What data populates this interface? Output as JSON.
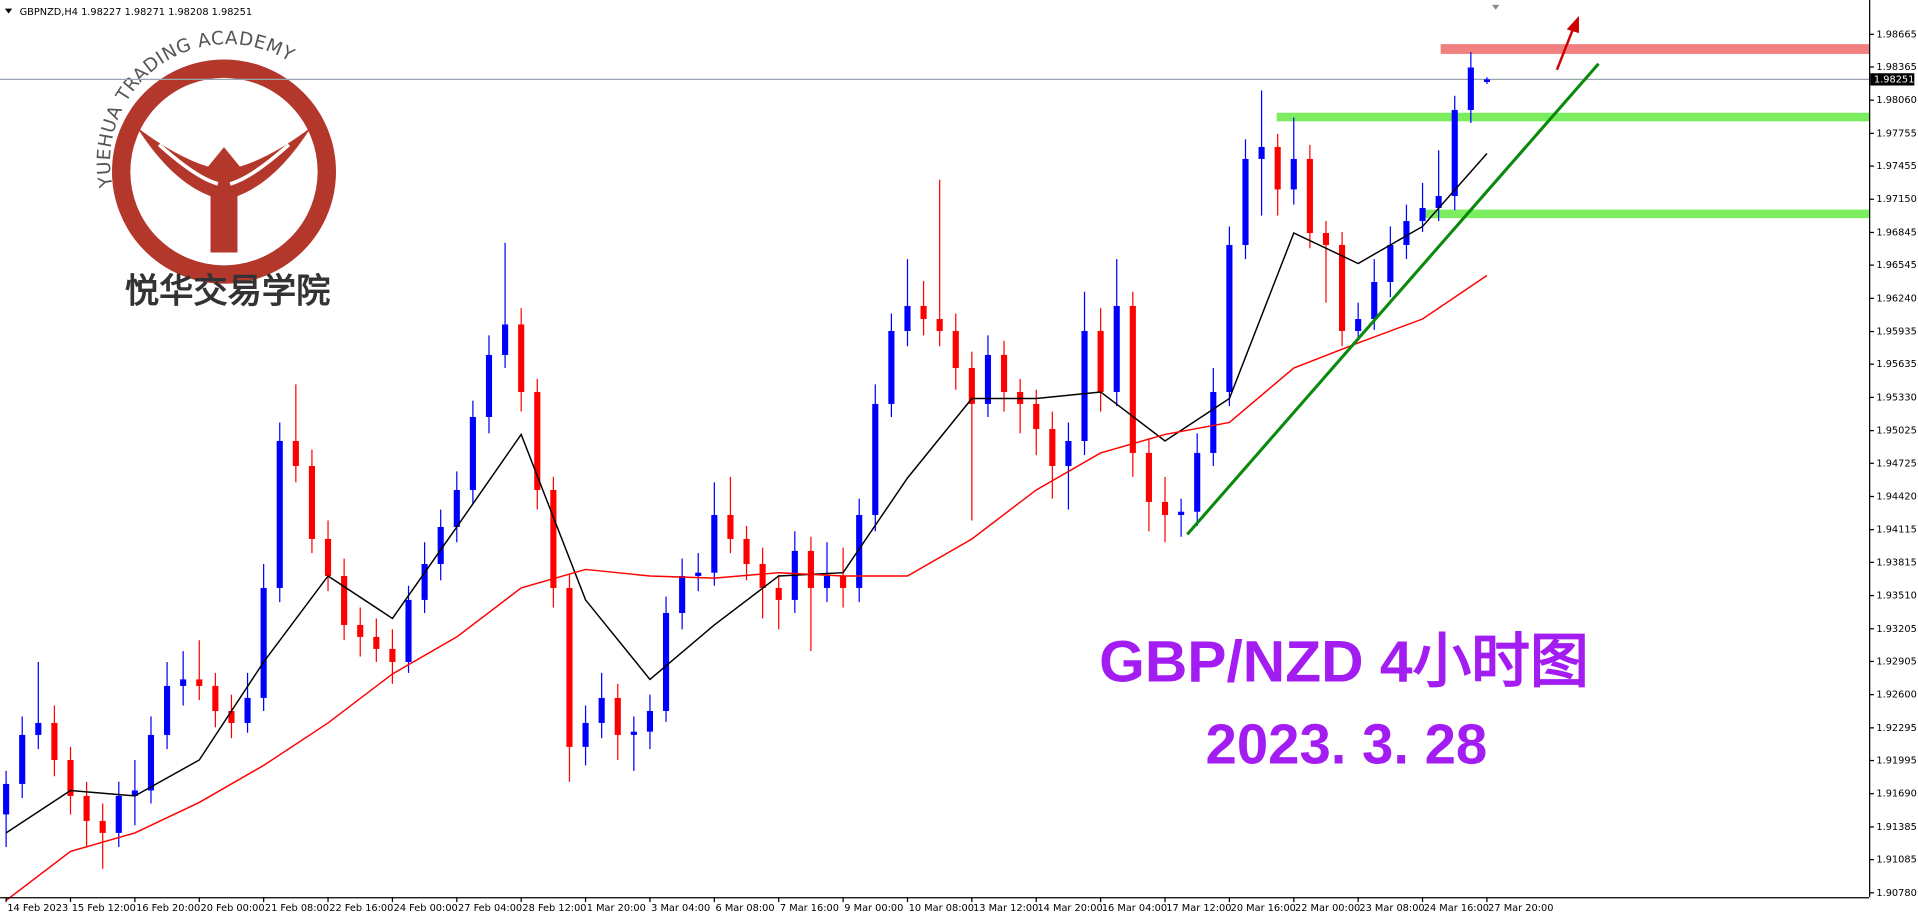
{
  "header": "GBPNZD,H4  1.98227 1.98271 1.98208 1.98251",
  "watermark": {
    "arc_text": "YUEHUA TRADING ACADEMY",
    "name": "悦华交易学院"
  },
  "chart_data": {
    "type": "candlestick",
    "title": "GBP/NZD 4小时图",
    "subtitle": "2023. 3. 28",
    "bull_color": "#0000ff",
    "bear_color": "#ff0000",
    "candles": [
      [
        1.915,
        1.919,
        1.912,
        1.9178
      ],
      [
        1.9178,
        1.924,
        1.9165,
        1.9223
      ],
      [
        1.9223,
        1.929,
        1.921,
        1.9234
      ],
      [
        1.9234,
        1.925,
        1.9185,
        1.92
      ],
      [
        1.92,
        1.9212,
        1.915,
        1.9167
      ],
      [
        1.9167,
        1.918,
        1.912,
        1.9144
      ],
      [
        1.9144,
        1.916,
        1.91,
        1.9133
      ],
      [
        1.9133,
        1.918,
        1.912,
        1.9167
      ],
      [
        1.9167,
        1.92,
        1.914,
        1.9172
      ],
      [
        1.9172,
        1.924,
        1.916,
        1.9223
      ],
      [
        1.9223,
        1.929,
        1.921,
        1.9268
      ],
      [
        1.9268,
        1.93,
        1.925,
        1.9274
      ],
      [
        1.9274,
        1.931,
        1.9255,
        1.9268
      ],
      [
        1.9268,
        1.928,
        1.923,
        1.9245
      ],
      [
        1.9245,
        1.926,
        1.922,
        1.9234
      ],
      [
        1.9234,
        1.928,
        1.9225,
        1.9257
      ],
      [
        1.9257,
        1.938,
        1.9245,
        1.9358
      ],
      [
        1.9358,
        1.951,
        1.9345,
        1.9493
      ],
      [
        1.9493,
        1.9545,
        1.9455,
        1.947
      ],
      [
        1.947,
        1.9485,
        1.939,
        1.9403
      ],
      [
        1.9403,
        1.942,
        1.9355,
        1.9369
      ],
      [
        1.9369,
        1.9385,
        1.931,
        1.9324
      ],
      [
        1.9324,
        1.934,
        1.9295,
        1.9313
      ],
      [
        1.9313,
        1.933,
        1.929,
        1.9302
      ],
      [
        1.9302,
        1.932,
        1.927,
        1.929
      ],
      [
        1.929,
        1.936,
        1.928,
        1.9347
      ],
      [
        1.9347,
        1.94,
        1.9335,
        1.938
      ],
      [
        1.938,
        1.943,
        1.9365,
        1.9414
      ],
      [
        1.9414,
        1.9465,
        1.94,
        1.9448
      ],
      [
        1.9448,
        1.953,
        1.9435,
        1.9515
      ],
      [
        1.9515,
        1.959,
        1.95,
        1.9572
      ],
      [
        1.9572,
        1.9675,
        1.956,
        1.96
      ],
      [
        1.96,
        1.9615,
        1.952,
        1.9538
      ],
      [
        1.9538,
        1.955,
        1.943,
        1.9448
      ],
      [
        1.9448,
        1.946,
        1.934,
        1.9358
      ],
      [
        1.9358,
        1.937,
        1.918,
        1.9212
      ],
      [
        1.9212,
        1.925,
        1.9195,
        1.9234
      ],
      [
        1.9234,
        1.928,
        1.922,
        1.9257
      ],
      [
        1.9257,
        1.927,
        1.92,
        1.9223
      ],
      [
        1.9223,
        1.924,
        1.919,
        1.9226
      ],
      [
        1.9226,
        1.926,
        1.921,
        1.9245
      ],
      [
        1.9245,
        1.935,
        1.9235,
        1.9335
      ],
      [
        1.9335,
        1.9385,
        1.932,
        1.9369
      ],
      [
        1.9369,
        1.939,
        1.9355,
        1.9372
      ],
      [
        1.9372,
        1.9455,
        1.936,
        1.9425
      ],
      [
        1.9425,
        1.946,
        1.939,
        1.9403
      ],
      [
        1.9403,
        1.9415,
        1.9365,
        1.938
      ],
      [
        1.938,
        1.9395,
        1.933,
        1.9358
      ],
      [
        1.9358,
        1.937,
        1.932,
        1.9347
      ],
      [
        1.9347,
        1.941,
        1.9335,
        1.9392
      ],
      [
        1.9392,
        1.9405,
        1.93,
        1.9358
      ],
      [
        1.9358,
        1.94,
        1.9345,
        1.9369
      ],
      [
        1.9369,
        1.9395,
        1.934,
        1.9358
      ],
      [
        1.9358,
        1.944,
        1.9345,
        1.9425
      ],
      [
        1.9425,
        1.9545,
        1.941,
        1.9527
      ],
      [
        1.9527,
        1.961,
        1.9515,
        1.9594
      ],
      [
        1.9594,
        1.966,
        1.958,
        1.9617
      ],
      [
        1.9617,
        1.964,
        1.959,
        1.9605
      ],
      [
        1.9605,
        1.9733,
        1.958,
        1.9594
      ],
      [
        1.9594,
        1.961,
        1.954,
        1.956
      ],
      [
        1.956,
        1.9575,
        1.942,
        1.9527
      ],
      [
        1.9527,
        1.959,
        1.9515,
        1.9572
      ],
      [
        1.9572,
        1.9585,
        1.952,
        1.9538
      ],
      [
        1.9538,
        1.955,
        1.95,
        1.9527
      ],
      [
        1.9527,
        1.954,
        1.948,
        1.9504
      ],
      [
        1.9504,
        1.952,
        1.944,
        1.947
      ],
      [
        1.947,
        1.951,
        1.943,
        1.9493
      ],
      [
        1.9493,
        1.963,
        1.948,
        1.9594
      ],
      [
        1.9594,
        1.9615,
        1.952,
        1.9538
      ],
      [
        1.9538,
        1.966,
        1.9525,
        1.9617
      ],
      [
        1.9617,
        1.963,
        1.946,
        1.9482
      ],
      [
        1.9482,
        1.9495,
        1.941,
        1.9437
      ],
      [
        1.9437,
        1.946,
        1.94,
        1.9425
      ],
      [
        1.9425,
        1.944,
        1.9405,
        1.9428
      ],
      [
        1.9428,
        1.95,
        1.9415,
        1.9482
      ],
      [
        1.9482,
        1.956,
        1.947,
        1.9538
      ],
      [
        1.9538,
        1.969,
        1.9525,
        1.9673
      ],
      [
        1.9673,
        1.977,
        1.966,
        1.9752
      ],
      [
        1.9752,
        1.9815,
        1.97,
        1.9763
      ],
      [
        1.9763,
        1.9775,
        1.97,
        1.9724
      ],
      [
        1.9724,
        1.979,
        1.971,
        1.9752
      ],
      [
        1.9752,
        1.9765,
        1.967,
        1.9684
      ],
      [
        1.9684,
        1.9695,
        1.962,
        1.9673
      ],
      [
        1.9673,
        1.9685,
        1.958,
        1.9594
      ],
      [
        1.9594,
        1.962,
        1.9585,
        1.9605
      ],
      [
        1.9605,
        1.966,
        1.9595,
        1.9639
      ],
      [
        1.9639,
        1.969,
        1.9625,
        1.9673
      ],
      [
        1.9673,
        1.971,
        1.966,
        1.9695
      ],
      [
        1.9695,
        1.973,
        1.9685,
        1.9707
      ],
      [
        1.9707,
        1.976,
        1.9695,
        1.9718
      ],
      [
        1.9718,
        1.981,
        1.9705,
        1.9797
      ],
      [
        1.9797,
        1.985,
        1.9785,
        1.9836
      ],
      [
        1.98227,
        1.98271,
        1.98208,
        1.98251
      ]
    ],
    "series": [
      {
        "color": "#000000",
        "x": [
          0,
          4,
          8,
          12,
          16,
          20,
          24,
          28,
          32,
          36,
          40,
          44,
          48,
          52,
          56,
          60,
          64,
          68,
          72,
          76,
          80,
          84,
          88,
          92
        ],
        "values": [
          1.9133,
          1.9172,
          1.9167,
          1.92,
          1.929,
          1.9369,
          1.933,
          1.9414,
          1.9499,
          1.9347,
          1.9274,
          1.9324,
          1.9369,
          1.9372,
          1.9459,
          1.9532,
          1.9532,
          1.9538,
          1.9493,
          1.9532,
          1.9684,
          1.9656,
          1.969,
          1.9757
        ]
      },
      {
        "color": "#ff0000",
        "x": [
          0,
          4,
          8,
          12,
          16,
          20,
          24,
          28,
          32,
          36,
          40,
          44,
          48,
          52,
          56,
          60,
          64,
          68,
          72,
          76,
          80,
          84,
          88,
          92
        ],
        "values": [
          1.9071,
          1.9116,
          1.9133,
          1.9161,
          1.9195,
          1.9234,
          1.9279,
          1.9313,
          1.9358,
          1.9375,
          1.9369,
          1.9367,
          1.9372,
          1.9369,
          1.9369,
          1.9403,
          1.9448,
          1.9482,
          1.9499,
          1.951,
          1.956,
          1.9583,
          1.9605,
          1.9645
        ]
      }
    ],
    "current_price": 1.98251,
    "xlim": [
      -0.38,
      115.74
    ],
    "ylim": [
      1.9074,
      1.9898
    ],
    "yticks": [
      1.98665,
      1.98365,
      {
        "value": 1.9806,
        "label": "1.98060"
      },
      1.97755,
      1.97455,
      {
        "value": 1.9715,
        "label": "1.97150"
      },
      1.96845,
      1.96545,
      {
        "value": 1.9624,
        "label": "1.96240"
      },
      1.95935,
      1.95635,
      {
        "value": 1.9533,
        "label": "1.95330"
      },
      1.95025,
      1.94725,
      {
        "value": 1.9442,
        "label": "1.94420"
      },
      1.94115,
      1.93815,
      {
        "value": 1.9351,
        "label": "1.93510"
      },
      1.93205,
      1.92905,
      {
        "value": 1.926,
        "label": "1.92600"
      },
      1.92295,
      1.91995,
      {
        "value": 1.9169,
        "label": "1.91690"
      },
      1.91385,
      1.91085,
      {
        "value": 1.9078,
        "label": "1.90780"
      }
    ],
    "xticks": [
      {
        "value": 0,
        "label": "14 Feb 2023"
      },
      {
        "value": 4,
        "label": "15 Feb 12:00"
      },
      {
        "value": 8,
        "label": "16 Feb 20:00"
      },
      {
        "value": 12,
        "label": "20 Feb 00:00"
      },
      {
        "value": 16,
        "label": "21 Feb 08:00"
      },
      {
        "value": 20,
        "label": "22 Feb 16:00"
      },
      {
        "value": 24,
        "label": "24 Feb 00:00"
      },
      {
        "value": 28,
        "label": "27 Feb 04:00"
      },
      {
        "value": 32,
        "label": "28 Feb 12:00"
      },
      {
        "value": 36,
        "label": "1 Mar 20:00"
      },
      {
        "value": 40,
        "label": "3 Mar 04:00"
      },
      {
        "value": 44,
        "label": "6 Mar 08:00"
      },
      {
        "value": 48,
        "label": "7 Mar 16:00"
      },
      {
        "value": 52,
        "label": "9 Mar 00:00"
      },
      {
        "value": 56,
        "label": "10 Mar 08:00"
      },
      {
        "value": 60,
        "label": "13 Mar 12:00"
      },
      {
        "value": 64,
        "label": "14 Mar 20:00"
      },
      {
        "value": 68,
        "label": "16 Mar 04:00"
      },
      {
        "value": 72,
        "label": "17 Mar 12:00"
      },
      {
        "value": 76,
        "label": "20 Mar 16:00"
      },
      {
        "value": 80,
        "label": "22 Mar 00:00"
      },
      {
        "value": 84,
        "label": "23 Mar 08:00"
      },
      {
        "value": 88,
        "label": "24 Mar 16:00"
      },
      {
        "value": 92,
        "label": "27 Mar 20:00"
      }
    ]
  }
}
